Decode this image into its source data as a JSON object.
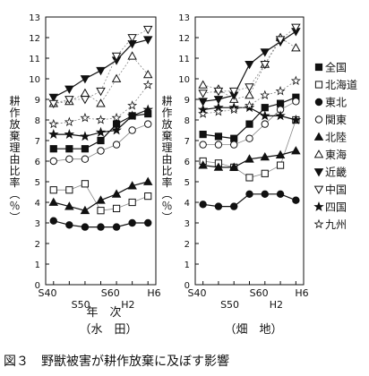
{
  "figure": {
    "caption": "図３　野獣被害が耕作放棄に及ぼす影響"
  },
  "legend_items": [
    {
      "id": "zenkoku",
      "label": "全国",
      "marker": "square-filled"
    },
    {
      "id": "hokkaido",
      "label": "北海道",
      "marker": "square-open"
    },
    {
      "id": "tohoku",
      "label": "東北",
      "marker": "circle-filled"
    },
    {
      "id": "kanto",
      "label": "関東",
      "marker": "circle-open"
    },
    {
      "id": "hokuriku",
      "label": "北陸",
      "marker": "triangle-up-filled"
    },
    {
      "id": "tokai",
      "label": "東海",
      "marker": "triangle-up-open"
    },
    {
      "id": "kinki",
      "label": "近畿",
      "marker": "triangle-down-filled"
    },
    {
      "id": "chugoku",
      "label": "中国",
      "marker": "triangle-down-open"
    },
    {
      "id": "shikoku",
      "label": "四国",
      "marker": "star-filled"
    },
    {
      "id": "kyushu",
      "label": "九州",
      "marker": "star-open"
    }
  ],
  "chart_data": [
    {
      "type": "line",
      "subtitle": "（水　田）",
      "ylabel": "耕作放棄理由比率（％）",
      "xlabel": "年　次",
      "x_ticks_top": [
        "S40",
        "S60",
        "H6"
      ],
      "x_ticks_bottom": [
        "S50",
        "H2"
      ],
      "y_ticks": [
        "0",
        "1",
        "2",
        "3",
        "4",
        "5",
        "6",
        "7",
        "8",
        "9",
        "10",
        "11",
        "12",
        "13"
      ],
      "ylim": [
        0,
        13
      ],
      "x": [
        "S40",
        "S45",
        "S50",
        "S55",
        "S60",
        "H2",
        "H6"
      ],
      "series": [
        {
          "id": "zenkoku",
          "values": [
            6.6,
            6.6,
            6.6,
            7.0,
            7.8,
            8.2,
            8.3
          ]
        },
        {
          "id": "hokkaido",
          "values": [
            4.6,
            4.6,
            4.9,
            3.6,
            3.7,
            4.0,
            4.3
          ]
        },
        {
          "id": "tohoku",
          "values": [
            3.1,
            2.9,
            2.8,
            2.8,
            2.8,
            3.0,
            3.0
          ]
        },
        {
          "id": "kanto",
          "values": [
            6.0,
            6.1,
            6.1,
            6.5,
            6.8,
            7.5,
            7.8
          ]
        },
        {
          "id": "hokuriku",
          "values": [
            4.0,
            3.8,
            3.6,
            4.1,
            4.4,
            4.8,
            5.0
          ]
        },
        {
          "id": "tokai",
          "values": [
            8.8,
            8.9,
            9.3,
            8.8,
            10.0,
            11.1,
            10.2
          ]
        },
        {
          "id": "kinki",
          "values": [
            9.1,
            9.5,
            10.0,
            10.4,
            10.9,
            11.7,
            11.9
          ]
        },
        {
          "id": "chugoku",
          "values": [
            8.8,
            9.0,
            9.0,
            9.4,
            11.1,
            12.0,
            12.4
          ]
        },
        {
          "id": "shikoku",
          "values": [
            7.3,
            7.3,
            7.2,
            7.4,
            7.5,
            8.2,
            8.5
          ]
        },
        {
          "id": "kyushu",
          "values": [
            7.8,
            7.9,
            8.1,
            8.0,
            8.1,
            8.7,
            9.7
          ]
        }
      ]
    },
    {
      "type": "line",
      "subtitle": "（畑　地）",
      "ylabel": "耕作放棄理由比率（％）",
      "x_ticks_top": [
        "S40",
        "S60",
        "H6"
      ],
      "x_ticks_bottom": [
        "S50",
        "H2"
      ],
      "y_ticks": [
        "0",
        "1",
        "2",
        "3",
        "4",
        "5",
        "6",
        "7",
        "8",
        "9",
        "10",
        "11",
        "12",
        "13"
      ],
      "ylim": [
        0,
        13
      ],
      "x": [
        "S40",
        "S45",
        "S50",
        "S55",
        "S60",
        "H2",
        "H6"
      ],
      "series": [
        {
          "id": "zenkoku",
          "values": [
            7.3,
            7.2,
            7.1,
            7.8,
            8.6,
            8.8,
            9.1
          ]
        },
        {
          "id": "hokkaido",
          "values": [
            6.0,
            5.9,
            5.7,
            5.2,
            5.4,
            5.8,
            8.0
          ]
        },
        {
          "id": "tohoku",
          "values": [
            3.9,
            3.8,
            3.8,
            4.4,
            4.4,
            4.4,
            4.1
          ]
        },
        {
          "id": "kanto",
          "values": [
            6.8,
            6.8,
            6.8,
            7.1,
            7.8,
            8.5,
            8.9
          ]
        },
        {
          "id": "hokuriku",
          "values": [
            5.8,
            5.7,
            5.7,
            6.1,
            6.2,
            6.3,
            6.5
          ]
        },
        {
          "id": "tokai",
          "values": [
            9.7,
            9.5,
            9.0,
            9.2,
            10.7,
            12.0,
            11.5
          ]
        },
        {
          "id": "kinki",
          "values": [
            8.9,
            9.0,
            9.2,
            10.7,
            11.3,
            11.8,
            12.3
          ]
        },
        {
          "id": "chugoku",
          "values": [
            9.3,
            9.4,
            9.4,
            9.6,
            10.7,
            11.9,
            12.5
          ]
        },
        {
          "id": "shikoku",
          "values": [
            8.5,
            8.6,
            8.6,
            8.6,
            8.2,
            8.2,
            8.0
          ]
        },
        {
          "id": "kyushu",
          "values": [
            8.3,
            8.4,
            8.5,
            8.7,
            9.2,
            9.4,
            9.9
          ]
        }
      ]
    }
  ]
}
